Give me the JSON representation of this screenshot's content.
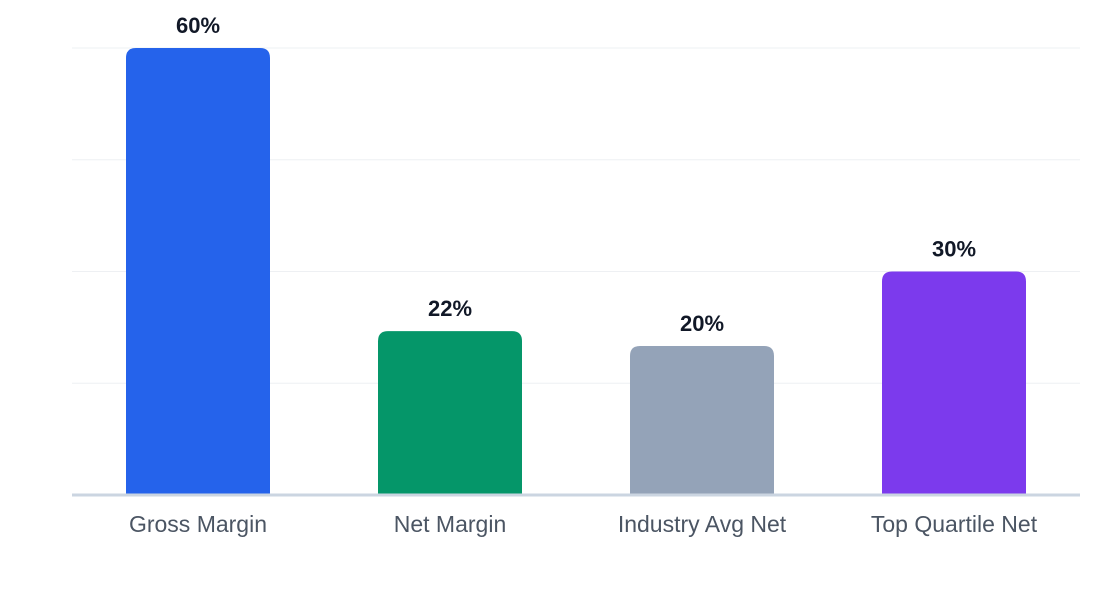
{
  "chart_data": {
    "type": "bar",
    "categories": [
      "Gross Margin",
      "Net Margin",
      "Industry Avg Net",
      "Top Quartile Net"
    ],
    "values": [
      60,
      22,
      20,
      30
    ],
    "value_labels": [
      "60%",
      "22%",
      "20%",
      "30%"
    ],
    "unit": "%",
    "ylim": [
      0,
      60
    ],
    "grid": true,
    "colors": [
      "#2563eb",
      "#059669",
      "#94a3b8",
      "#7c3aed"
    ],
    "title": "",
    "xlabel": "",
    "ylabel": ""
  }
}
